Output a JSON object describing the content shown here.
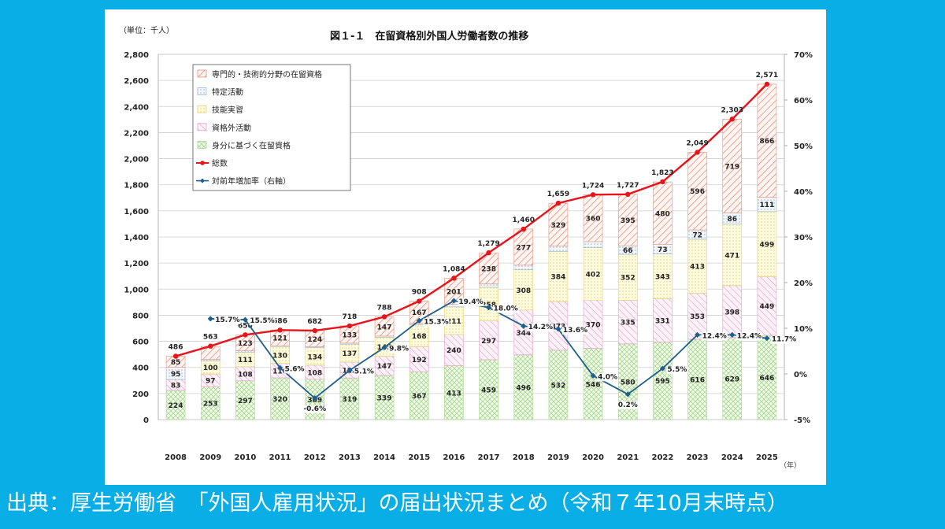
{
  "caption": "出典：厚生労働省　「外国人雇用状況」の届出状況まとめ（令和７年10月末時点）",
  "colors": {
    "background": "#0aaee6",
    "total_line": "#e8141b",
    "rate_line": "#1f5f8b",
    "hatch_senmon": "#e8907a",
    "hatch_tokutei": "#9db8cf",
    "hatch_gino": "#e3d36c",
    "hatch_shikakugai": "#e39cc8",
    "hatch_mibun": "#a9d98e"
  },
  "chart_data": {
    "type": "bar",
    "title": "図１-１　在留資格別外国人労働者数の推移",
    "unit_label": "（単位：千人）",
    "x_unit": "（年）",
    "categories": [
      "2008",
      "2009",
      "2010",
      "2011",
      "2012",
      "2013",
      "2014",
      "2015",
      "2016",
      "2017",
      "2018",
      "2019",
      "2020",
      "2021",
      "2022",
      "2023",
      "2024",
      "2025"
    ],
    "ylim": [
      0,
      2800
    ],
    "yticks": [
      "0",
      "200",
      "400",
      "600",
      "800",
      "1,000",
      "1,200",
      "1,400",
      "1,600",
      "1,800",
      "2,000",
      "2,200",
      "2,400",
      "2,600",
      "2,800"
    ],
    "y2lim": [
      -5,
      70
    ],
    "y2ticks": [
      "-5%",
      "0%",
      "10%",
      "20%",
      "30%",
      "40%",
      "50%",
      "60%",
      "70%"
    ],
    "series": [
      {
        "name": "身分に基づく在留資格",
        "values": [
          224,
          253,
          297,
          320,
          309,
          319,
          339,
          367,
          413,
          459,
          496,
          532,
          546,
          580,
          595,
          616,
          629,
          646
        ],
        "labels": [
          "224",
          "253",
          "297",
          "320",
          "309",
          "319",
          "339",
          "367",
          "413",
          "459",
          "496",
          "532",
          "546",
          "580",
          "595",
          "616",
          "629",
          "646"
        ]
      },
      {
        "name": "資格外活動",
        "values": [
          83,
          97,
          108,
          110,
          108,
          122,
          147,
          192,
          240,
          297,
          344,
          373,
          370,
          335,
          331,
          353,
          398,
          449
        ],
        "labels": [
          "83",
          "97",
          "108",
          "110",
          "108",
          "122",
          "147",
          "192",
          "240",
          "297",
          "344",
          "373",
          "370",
          "335",
          "331",
          "353",
          "398",
          "449"
        ]
      },
      {
        "name": "技能実習",
        "values": [
          0,
          100,
          111,
          130,
          134,
          137,
          145,
          168,
          211,
          258,
          308,
          384,
          402,
          352,
          343,
          413,
          471,
          499
        ],
        "labels": [
          "",
          "100",
          "111",
          "130",
          "134",
          "137",
          "145",
          "168",
          "211",
          "258",
          "308",
          "384",
          "402",
          "352",
          "343",
          "413",
          "471",
          "499"
        ]
      },
      {
        "name": "特定活動",
        "values": [
          95,
          11,
          11,
          6,
          7,
          8,
          9,
          13,
          19,
          26,
          36,
          41,
          46,
          66,
          73,
          72,
          86,
          111
        ],
        "labels": [
          "95",
          "",
          "11",
          "6",
          "7",
          "8",
          "9",
          "13",
          "19",
          "26",
          "36",
          "41",
          "46",
          "66",
          "73",
          "72",
          "86",
          "111"
        ]
      },
      {
        "name": "専門的・技術的分野の在留資格",
        "values": [
          85,
          100,
          123,
          121,
          124,
          133,
          147,
          167,
          201,
          238,
          277,
          329,
          360,
          395,
          480,
          596,
          719,
          866
        ],
        "labels": [
          "85",
          "",
          "123",
          "121",
          "124",
          "133",
          "147",
          "167",
          "201",
          "238",
          "277",
          "329",
          "360",
          "395",
          "480",
          "596",
          "719",
          "866"
        ]
      }
    ],
    "total": {
      "name": "総数",
      "values": [
        486,
        563,
        650,
        686,
        682,
        718,
        788,
        908,
        1084,
        1279,
        1460,
        1659,
        1724,
        1727,
        1823,
        2049,
        2303,
        2571
      ],
      "labels": [
        "486",
        "563",
        "650",
        "686",
        "682",
        "718",
        "788",
        "908",
        "1,084",
        "1,279",
        "1,460",
        "1,659",
        "1,724",
        "1,727",
        "1,823",
        "2,049",
        "2,303",
        "2,571"
      ]
    },
    "rate": {
      "name": "対前年増加率（右軸）",
      "start_index": 1,
      "values": [
        15.7,
        15.5,
        5.6,
        -0.6,
        5.1,
        9.8,
        15.3,
        19.4,
        18.0,
        14.2,
        13.6,
        4.0,
        0.2,
        5.5,
        12.4,
        12.4,
        11.7
      ],
      "labels": [
        "15.7%",
        "15.5%",
        "5.6%",
        "-0.6%",
        "5.1%",
        "9.8%",
        "15.3%",
        "19.4%",
        "18.0%",
        "14.2%",
        "13.6%",
        "4.0%",
        "0.2%",
        "5.5%",
        "12.4%",
        "12.4%",
        "11.7%"
      ]
    },
    "legend": {
      "placement": "top-left",
      "items": [
        {
          "label": "専門的・技術的分野の在留資格",
          "kind": "box",
          "pattern": "senmon"
        },
        {
          "label": "特定活動",
          "kind": "box",
          "pattern": "tokutei"
        },
        {
          "label": "技能実習",
          "kind": "box",
          "pattern": "gino"
        },
        {
          "label": "資格外活動",
          "kind": "box",
          "pattern": "shikakugai"
        },
        {
          "label": "身分に基づく在留資格",
          "kind": "box",
          "pattern": "mibun"
        },
        {
          "label": "総数",
          "kind": "line-red"
        },
        {
          "label": "対前年増加率（右軸）",
          "kind": "line-blue"
        }
      ]
    }
  }
}
